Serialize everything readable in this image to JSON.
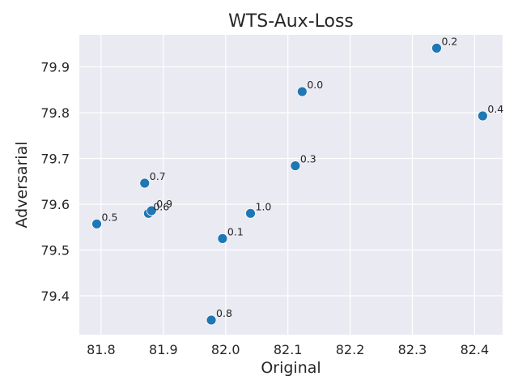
{
  "chart_data": {
    "type": "scatter",
    "title": "WTS-Aux-Loss",
    "xlabel": "Original",
    "ylabel": "Adversarial",
    "xlim": [
      81.765,
      82.445
    ],
    "ylim": [
      79.315,
      79.97
    ],
    "xticks": [
      81.8,
      81.9,
      82.0,
      82.1,
      82.2,
      82.3,
      82.4
    ],
    "yticks": [
      79.4,
      79.5,
      79.6,
      79.7,
      79.8,
      79.9
    ],
    "grid": true,
    "point_color": "#1f77b4",
    "background_color": "#eaeaf2",
    "points": [
      {
        "label": "0.0",
        "x": 82.123,
        "y": 79.846
      },
      {
        "label": "0.1",
        "x": 81.995,
        "y": 79.525
      },
      {
        "label": "0.2",
        "x": 82.339,
        "y": 79.941
      },
      {
        "label": "0.3",
        "x": 82.112,
        "y": 79.684
      },
      {
        "label": "0.4",
        "x": 82.413,
        "y": 79.793
      },
      {
        "label": "0.5",
        "x": 81.793,
        "y": 79.557
      },
      {
        "label": "0.6",
        "x": 81.876,
        "y": 79.58
      },
      {
        "label": "0.7",
        "x": 81.87,
        "y": 79.646
      },
      {
        "label": "0.8",
        "x": 81.977,
        "y": 79.347
      },
      {
        "label": "0.9",
        "x": 81.881,
        "y": 79.586
      },
      {
        "label": "1.0",
        "x": 82.04,
        "y": 79.58
      }
    ]
  }
}
